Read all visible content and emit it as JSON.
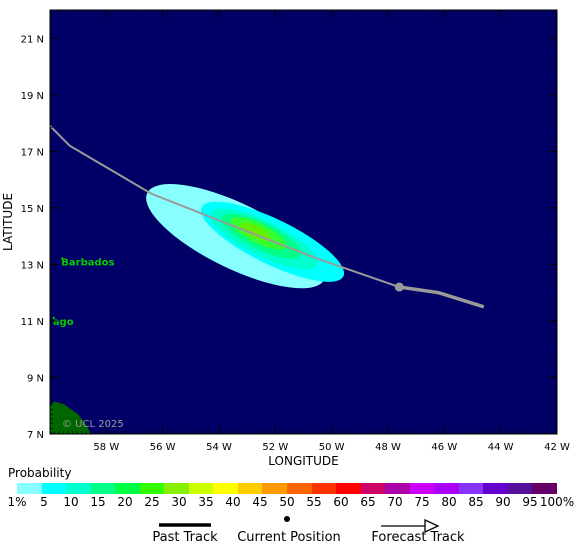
{
  "map": {
    "lon_range": [
      -60,
      -42
    ],
    "lat_range": [
      7,
      22
    ],
    "lon_ticks": [
      {
        "value": -58,
        "label": "58 W"
      },
      {
        "value": -56,
        "label": "56 W"
      },
      {
        "value": -54,
        "label": "54 W"
      },
      {
        "value": -52,
        "label": "52 W"
      },
      {
        "value": -50,
        "label": "50 W"
      },
      {
        "value": -48,
        "label": "48 W"
      },
      {
        "value": -46,
        "label": "46 W"
      },
      {
        "value": -44,
        "label": "44 W"
      },
      {
        "value": -42,
        "label": "42 W"
      }
    ],
    "lat_ticks": [
      {
        "value": 7,
        "label": "7 N"
      },
      {
        "value": 9,
        "label": "9 N"
      },
      {
        "value": 11,
        "label": "11 N"
      },
      {
        "value": 13,
        "label": "13 N"
      },
      {
        "value": 15,
        "label": "15 N"
      },
      {
        "value": 17,
        "label": "17 N"
      },
      {
        "value": 19,
        "label": "19 N"
      },
      {
        "value": 21,
        "label": "21 N"
      }
    ],
    "xlabel": "LONGITUDE",
    "ylabel": "LATITUDE",
    "places": [
      {
        "name": "Barbados",
        "lon": -59.6,
        "lat": 13.1
      },
      {
        "name": "ago",
        "lon": -59.9,
        "lat": 11.0
      }
    ],
    "copyright": "© UCL 2025",
    "colors": {
      "ocean": "#000066",
      "land": "#006600",
      "track": "#9a9a9a",
      "place_label": "#00cc00"
    },
    "past_track": [
      {
        "lon": -60.0,
        "lat": 17.9
      },
      {
        "lon": -59.3,
        "lat": 17.2
      },
      {
        "lon": -56.4,
        "lat": 15.5
      },
      {
        "lon": -53.6,
        "lat": 14.4
      },
      {
        "lon": -50.5,
        "lat": 13.2
      },
      {
        "lon": -47.6,
        "lat": 12.2
      }
    ],
    "current_position": {
      "lon": -47.6,
      "lat": 12.2
    },
    "forecast_track": [
      {
        "lon": -47.6,
        "lat": 12.2
      },
      {
        "lon": -46.2,
        "lat": 12.0
      },
      {
        "lon": -44.6,
        "lat": 11.5
      }
    ],
    "probability_swath": [
      {
        "level": 1,
        "lon": -53.4,
        "lat": 14.0,
        "length": 7.0,
        "width": 2.3,
        "angle": 26,
        "color": "#88ffff"
      },
      {
        "level": 5,
        "lon": -52.1,
        "lat": 13.8,
        "length": 5.6,
        "width": 1.6,
        "angle": 26,
        "color": "#00ffff"
      },
      {
        "level": 10,
        "lon": -52.4,
        "lat": 13.9,
        "length": 4.2,
        "width": 1.25,
        "angle": 26,
        "color": "#00ffcc"
      },
      {
        "level": 15,
        "lon": -52.5,
        "lat": 14.0,
        "length": 3.1,
        "width": 0.95,
        "angle": 26,
        "color": "#00ff88"
      },
      {
        "level": 20,
        "lon": -52.6,
        "lat": 14.1,
        "length": 2.2,
        "width": 0.7,
        "angle": 26,
        "color": "#33ff33"
      },
      {
        "level": 25,
        "lon": -52.7,
        "lat": 14.15,
        "length": 1.2,
        "width": 0.42,
        "angle": 26,
        "color": "#66ee00"
      }
    ]
  },
  "legend": {
    "title": "Probability",
    "colors": [
      "#88ffff",
      "#00ffff",
      "#00ffcc",
      "#00ff88",
      "#00ff44",
      "#33ff00",
      "#88ee00",
      "#ccff00",
      "#ffff00",
      "#ffcc00",
      "#ff9900",
      "#ff6600",
      "#ff3300",
      "#ff0000",
      "#cc0066",
      "#aa00aa",
      "#cc00ff",
      "#aa00ff",
      "#8833ff",
      "#6600cc",
      "#551199",
      "#660066"
    ],
    "tick_labels": [
      "1%",
      "5",
      "10",
      "15",
      "20",
      "25",
      "30",
      "35",
      "40",
      "45",
      "50",
      "55",
      "60",
      "65",
      "70",
      "75",
      "80",
      "85",
      "90",
      "95",
      "100%"
    ],
    "past_track_label": "Past Track",
    "current_position_label": "Current Position",
    "forecast_track_label": "Forecast Track"
  }
}
